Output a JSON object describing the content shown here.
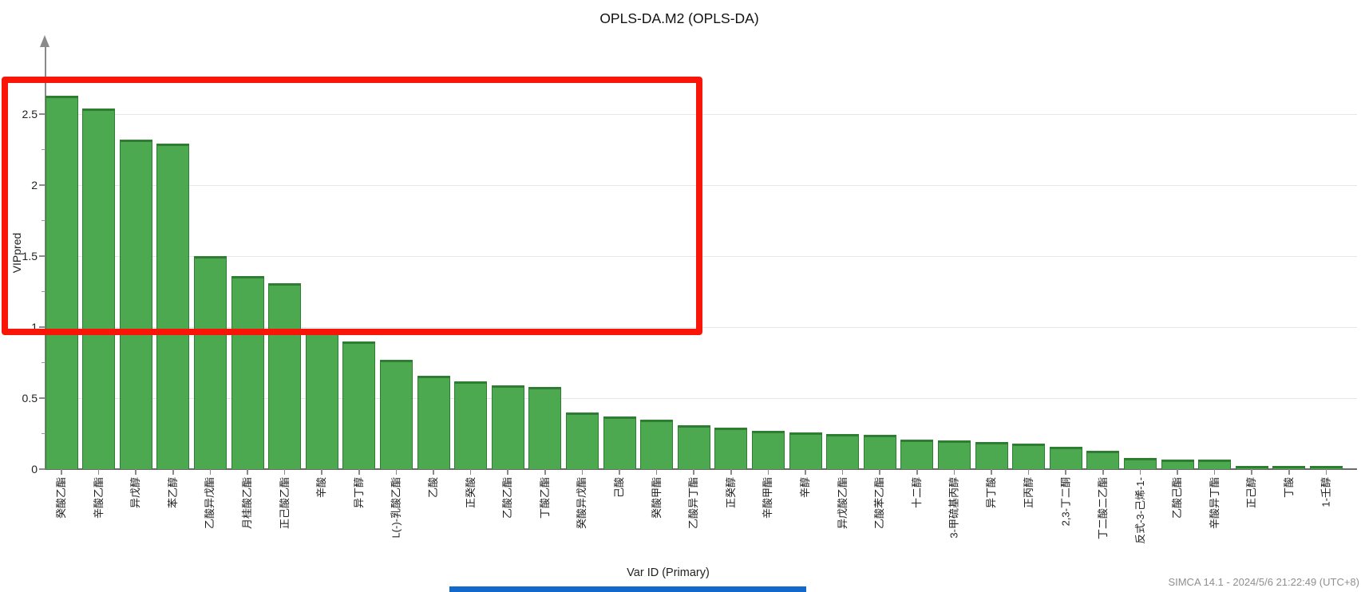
{
  "title": "OPLS-DA.M2 (OPLS-DA)",
  "chart_data": {
    "type": "bar",
    "title": "OPLS-DA.M2 (OPLS-DA)",
    "xlabel": "Var ID (Primary)",
    "ylabel": "VIPpred",
    "ylim": [
      0,
      2.75
    ],
    "yticks": [
      0,
      0.5,
      1,
      1.5,
      2,
      2.5
    ],
    "minor_yticks": [
      0.25,
      0.75,
      1.25,
      1.75,
      2.25,
      2.75
    ],
    "grid": true,
    "legend": "none",
    "categories": [
      "癸酸乙酯",
      "辛酸乙酯",
      "异戊醇",
      "苯乙醇",
      "乙酸异戊酯",
      "月桂酸乙酯",
      "正己酸乙酯",
      "辛酸",
      "异丁醇",
      "L(-)-乳酸乙酯",
      "乙酸",
      "正癸酸",
      "乙酸乙酯",
      "丁酸乙酯",
      "癸酸异戊酯",
      "己酸",
      "癸酸甲酯",
      "乙酸异丁酯",
      "正癸醇",
      "辛酸甲酯",
      "辛醇",
      "异戊酸乙酯",
      "乙酸苯乙酯",
      "十二醇",
      "3-甲硫基丙醇",
      "异丁酸",
      "正丙醇",
      "2,3-丁二酮",
      "丁二酸二乙酯",
      "反式-3-己烯-1-",
      "乙酸己酯",
      "辛酸异丁酯",
      "正己醇",
      "丁酸",
      "1-壬醇"
    ],
    "values": [
      2.63,
      2.54,
      2.32,
      2.29,
      1.5,
      1.36,
      1.31,
      0.98,
      0.9,
      0.77,
      0.66,
      0.62,
      0.59,
      0.58,
      0.4,
      0.37,
      0.35,
      0.31,
      0.29,
      0.27,
      0.26,
      0.25,
      0.24,
      0.21,
      0.2,
      0.19,
      0.18,
      0.16,
      0.13,
      0.08,
      0.07,
      0.07,
      0.02,
      0.02,
      0.02
    ]
  },
  "annotation": {
    "shape": "rectangle",
    "color": "#f91608",
    "highlights": "bars with VIPpred above 1 (top 7 variables)"
  },
  "footer": {
    "text": "SIMCA 14.1 - 2024/5/6 21:22:49 (UTC+8)"
  },
  "colors": {
    "bar_fill": "#4ca950",
    "bar_edge": "#2e7d32",
    "annotation_red": "#f91608",
    "gridline": "#e7e7e7",
    "axis_gray": "#8a8a8a",
    "blue_strip": "#1268cb"
  }
}
